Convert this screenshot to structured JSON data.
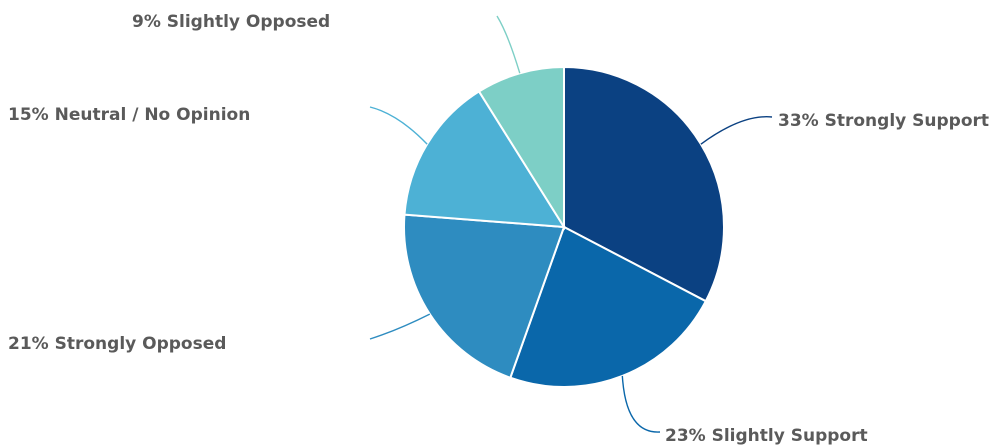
{
  "chart_data": {
    "type": "pie",
    "title": "",
    "legend": "none",
    "slices": [
      {
        "label": "Strongly Support",
        "value": 33,
        "display": "33% Strongly Support",
        "color": "#0b4182"
      },
      {
        "label": "Slightly Support",
        "value": 23,
        "display": "23% Slightly Support",
        "color": "#0a67aa"
      },
      {
        "label": "Strongly Opposed",
        "value": 21,
        "display": "21% Strongly Opposed",
        "color": "#2e8cc0"
      },
      {
        "label": "Neutral / No Opinion",
        "value": 15,
        "display": "15% Neutral / No Opinion",
        "color": "#4db1d5"
      },
      {
        "label": "Slightly Opposed",
        "value": 9,
        "display": "9% Slightly Opposed",
        "color": "#7dcfc6"
      }
    ]
  }
}
